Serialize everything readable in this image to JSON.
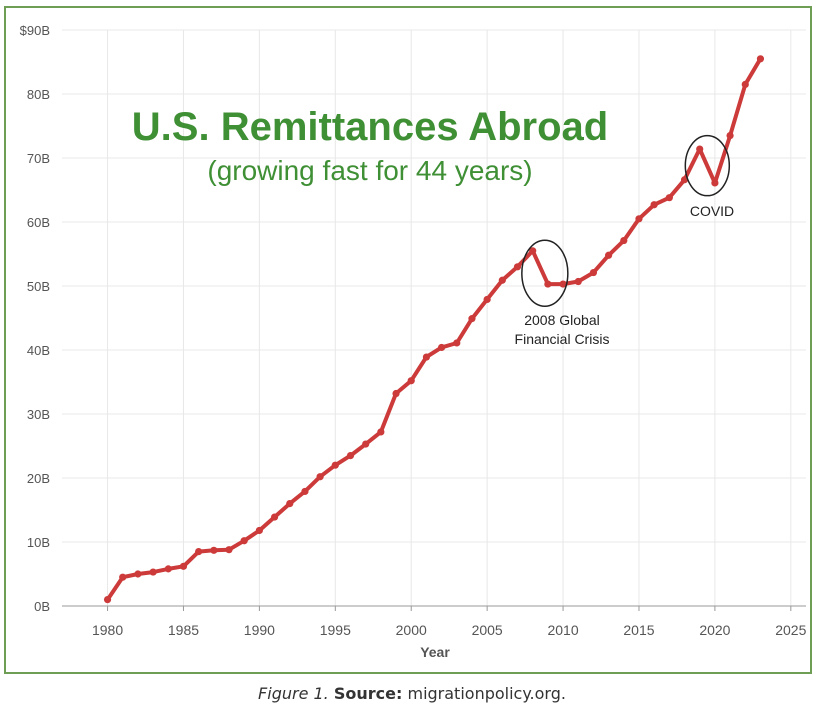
{
  "chart_data": {
    "type": "line",
    "title": "U.S. Remittances Abroad",
    "subtitle": "(growing fast for 44 years)",
    "xlabel": "Year",
    "ylabel": "",
    "xlim": [
      1977,
      2026
    ],
    "ylim": [
      0,
      90
    ],
    "x_ticks": [
      1980,
      1985,
      1990,
      1995,
      2000,
      2005,
      2010,
      2015,
      2020,
      2025
    ],
    "y_ticks": [
      0,
      10,
      20,
      30,
      40,
      50,
      60,
      70,
      80,
      90
    ],
    "y_tick_labels": [
      "0B",
      "10B",
      "20B",
      "30B",
      "40B",
      "50B",
      "60B",
      "70B",
      "80B",
      "$90B"
    ],
    "grid": true,
    "legend": "none",
    "colors": {
      "line": "#cc3a3a",
      "title": "#3f8f35",
      "frame": "#6d9e54",
      "grid": "#e8e8e8",
      "tick_text": "#555555",
      "annotation": "#222222"
    },
    "x": [
      1980,
      1981,
      1982,
      1983,
      1984,
      1985,
      1986,
      1987,
      1988,
      1989,
      1990,
      1991,
      1992,
      1993,
      1994,
      1995,
      1996,
      1997,
      1998,
      1999,
      2000,
      2001,
      2002,
      2003,
      2004,
      2005,
      2006,
      2007,
      2008,
      2009,
      2010,
      2011,
      2012,
      2013,
      2014,
      2015,
      2016,
      2017,
      2018,
      2019,
      2020,
      2021,
      2022,
      2023
    ],
    "y": [
      1.0,
      4.5,
      5.0,
      5.3,
      5.8,
      6.2,
      8.5,
      8.7,
      8.8,
      10.2,
      11.8,
      13.9,
      16.0,
      17.9,
      20.2,
      22.0,
      23.5,
      25.3,
      27.2,
      33.2,
      35.2,
      38.9,
      40.4,
      41.1,
      44.9,
      47.9,
      50.9,
      53.0,
      55.5,
      50.3,
      50.3,
      50.7,
      52.1,
      54.8,
      57.1,
      60.5,
      62.7,
      63.8,
      66.6,
      71.4,
      66.1,
      73.5,
      81.5,
      85.5
    ],
    "annotations": [
      {
        "lines": [
          "2008 Global",
          "Financial Crisis"
        ],
        "x": 2008.8,
        "y": 52.0
      },
      {
        "lines": [
          "COVID"
        ],
        "x": 2019.5,
        "y": 68.8
      }
    ]
  },
  "caption": {
    "figure_label": "Figure 1.",
    "source_label": "Source:",
    "source_text": "migrationpolicy.org."
  }
}
